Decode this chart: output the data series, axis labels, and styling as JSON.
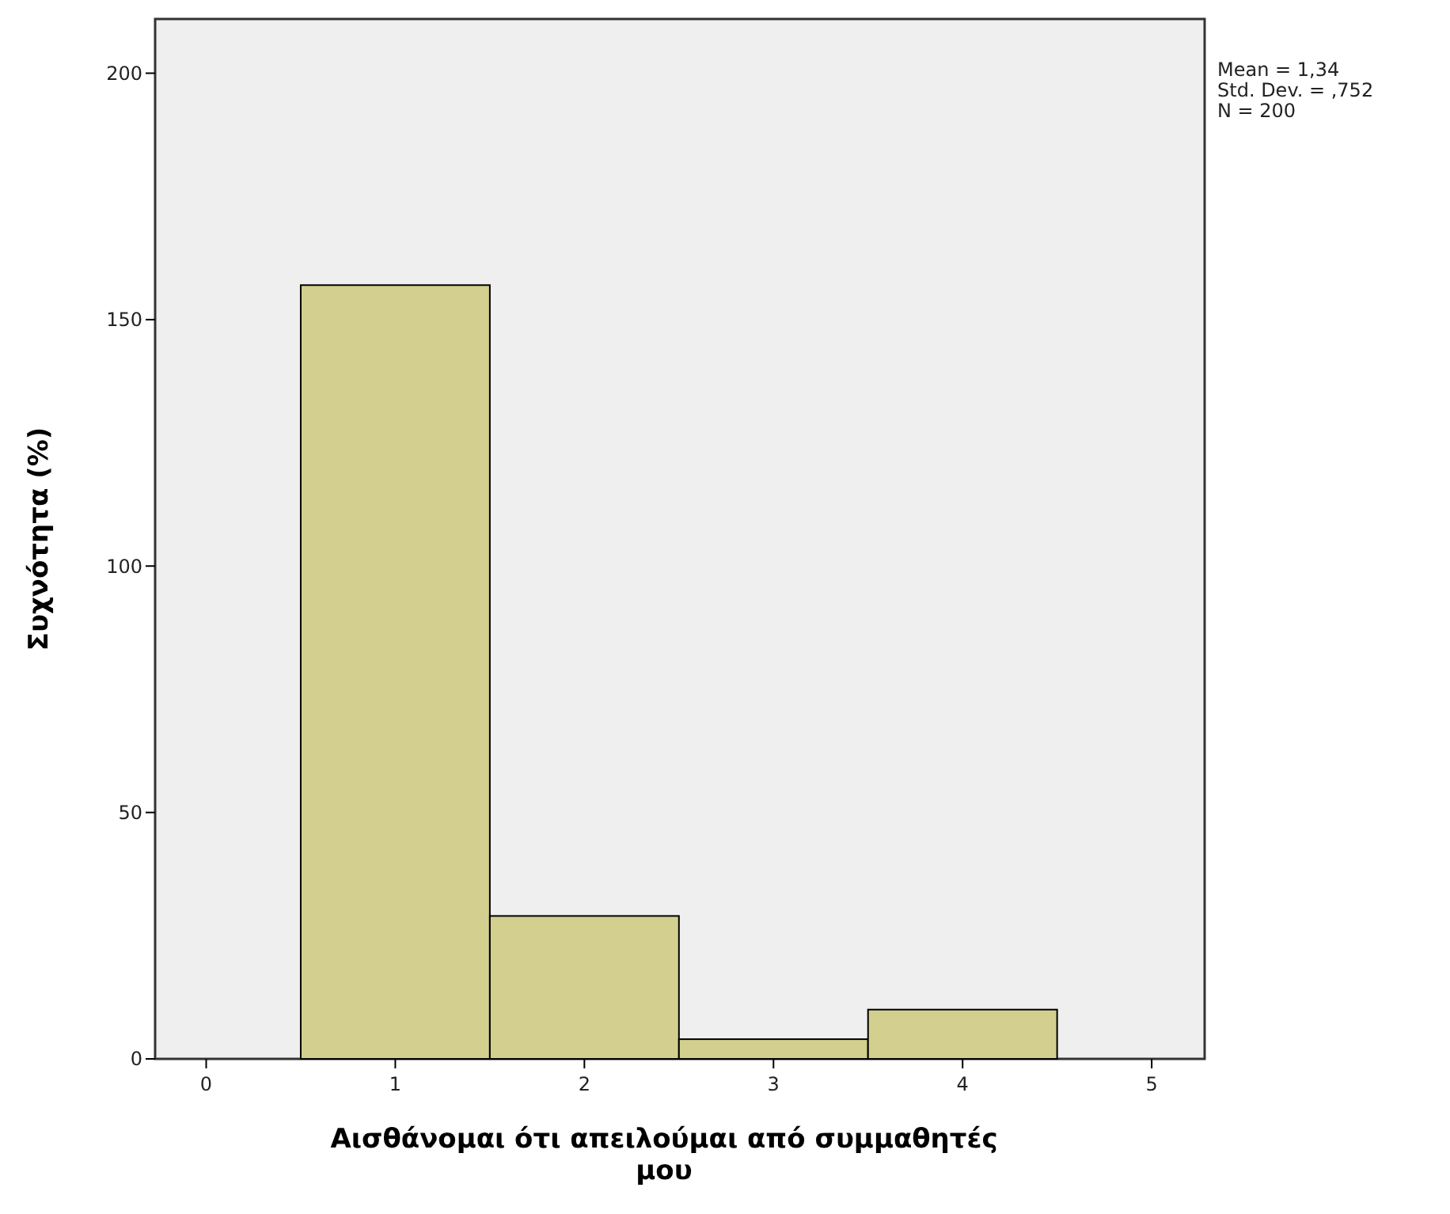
{
  "chart_data": {
    "type": "histogram",
    "xlabel": "Αισθάνομαι ότι απειλούμαι από συμμαθητές μου",
    "ylabel": "Συχνότητα (%)",
    "bins": [
      0.5,
      1.5,
      2.5,
      3.5,
      4.5
    ],
    "values": [
      157,
      29,
      4,
      10
    ],
    "color": "#d3cf8e",
    "xlim": [
      -0.27,
      5.28
    ],
    "xticks": [
      0,
      1,
      2,
      3,
      4,
      5
    ],
    "ylim": [
      0,
      211
    ],
    "yticks": [
      0,
      50,
      100,
      150,
      200
    ],
    "annotations": [
      "Mean = 1,34",
      "Std. Dev. = ,752",
      "N = 200"
    ]
  }
}
